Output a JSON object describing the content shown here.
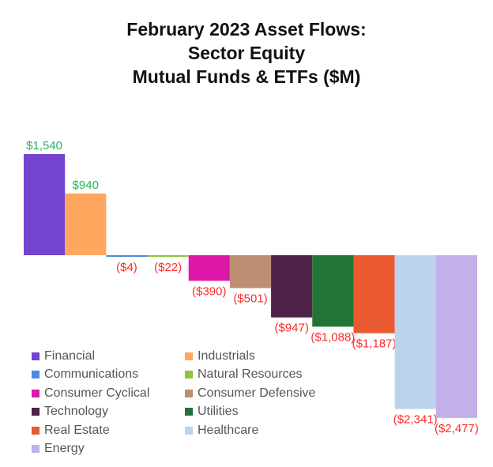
{
  "chart_data": {
    "type": "bar",
    "title_lines": [
      "February 2023 Asset Flows:",
      "Sector Equity",
      "Mutual Funds & ETFs ($M)"
    ],
    "categories": [
      "Financial",
      "Industrials",
      "Communications",
      "Natural Resources",
      "Consumer Cyclical",
      "Consumer Defensive",
      "Technology",
      "Utilities",
      "Real Estate",
      "Healthcare",
      "Energy"
    ],
    "values": [
      1540,
      940,
      -4,
      -22,
      -390,
      -501,
      -947,
      -1088,
      -1187,
      -2341,
      -2477
    ],
    "data_labels": [
      "$1,540",
      "$940",
      "($4)",
      "($22)",
      "($390)",
      "($501)",
      "($947)",
      "($1,088)",
      "($1,187)",
      "($2,341)",
      "($2,477)"
    ],
    "colors": [
      "#7444d0",
      "#ffa75e",
      "#4a8ae0",
      "#8cc63f",
      "#dd18a8",
      "#bc8f72",
      "#4e2148",
      "#237437",
      "#e95a30",
      "#bcd3ee",
      "#c4b0e8"
    ],
    "label_colors": {
      "positive": "#22b55a",
      "negative": "#ff2b2b"
    },
    "legend": "bottom-left",
    "ylim": [
      -2477,
      1540
    ],
    "grid": false
  }
}
